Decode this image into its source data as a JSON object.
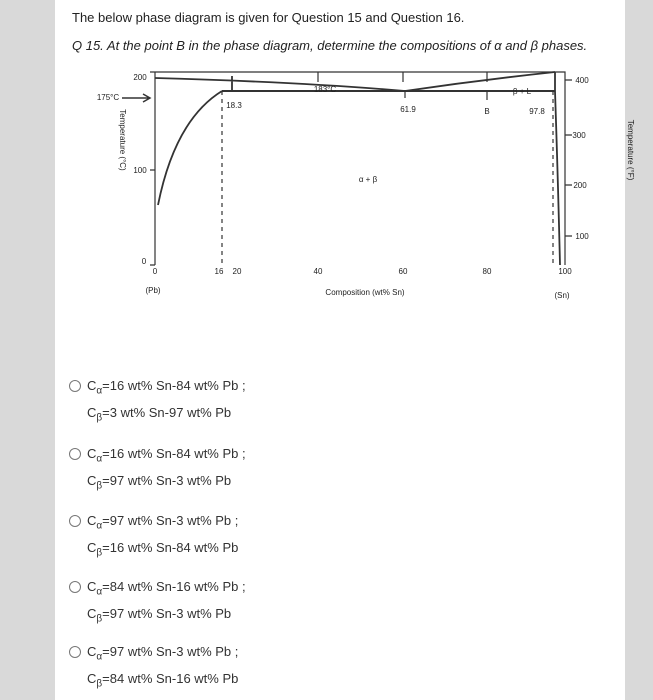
{
  "header": {
    "title": "The below phase diagram is given for Question 15 and Question 16.",
    "question": "Q 15. At the point B in the phase diagram, determine the compositions of α and β phases."
  },
  "diagram": {
    "left_axis_title": "Temperature (°C)",
    "right_axis_title": "Temperature (°F)",
    "x_axis_title": "Composition (wt% Sn)",
    "left_ticks": [
      "200",
      "100",
      "0"
    ],
    "right_ticks": [
      "400",
      "300",
      "200",
      "100"
    ],
    "x_ticks": [
      "0",
      "16",
      "20",
      "40",
      "60",
      "80",
      "100"
    ],
    "end_labels": [
      "(Pb)",
      "(Sn)"
    ],
    "annotations": [
      "175°C",
      "18.3",
      "183°C",
      "61.9",
      "B",
      "97.8",
      "α + β",
      "β + L"
    ]
  },
  "options": [
    {
      "lines": [
        {
          "symbol": "C",
          "sub": "α",
          "text": "=16 wt% Sn-84 wt% Pb ;"
        },
        {
          "symbol": "C",
          "sub": "β",
          "text": "=3 wt% Sn-97 wt% Pb"
        }
      ]
    },
    {
      "lines": [
        {
          "symbol": "C",
          "sub": "α",
          "text": "=16 wt% Sn-84 wt% Pb ;"
        },
        {
          "symbol": "C",
          "sub": "β",
          "text": "=97 wt% Sn-3 wt% Pb"
        }
      ]
    },
    {
      "lines": [
        {
          "symbol": "C",
          "sub": "α",
          "text": "=97 wt% Sn-3 wt% Pb ;"
        },
        {
          "symbol": "C",
          "sub": "β",
          "text": "=16 wt% Sn-84 wt% Pb"
        }
      ]
    },
    {
      "lines": [
        {
          "symbol": "C",
          "sub": "α",
          "text": "=84 wt% Sn-16 wt% Pb ;"
        },
        {
          "symbol": "C",
          "sub": "β",
          "text": "=97 wt% Sn-3 wt% Pb"
        }
      ]
    },
    {
      "lines": [
        {
          "symbol": "C",
          "sub": "α",
          "text": "=97 wt% Sn-3 wt% Pb ;"
        },
        {
          "symbol": "C",
          "sub": "β",
          "text": "=84 wt% Sn-16 wt% Pb"
        }
      ]
    }
  ]
}
